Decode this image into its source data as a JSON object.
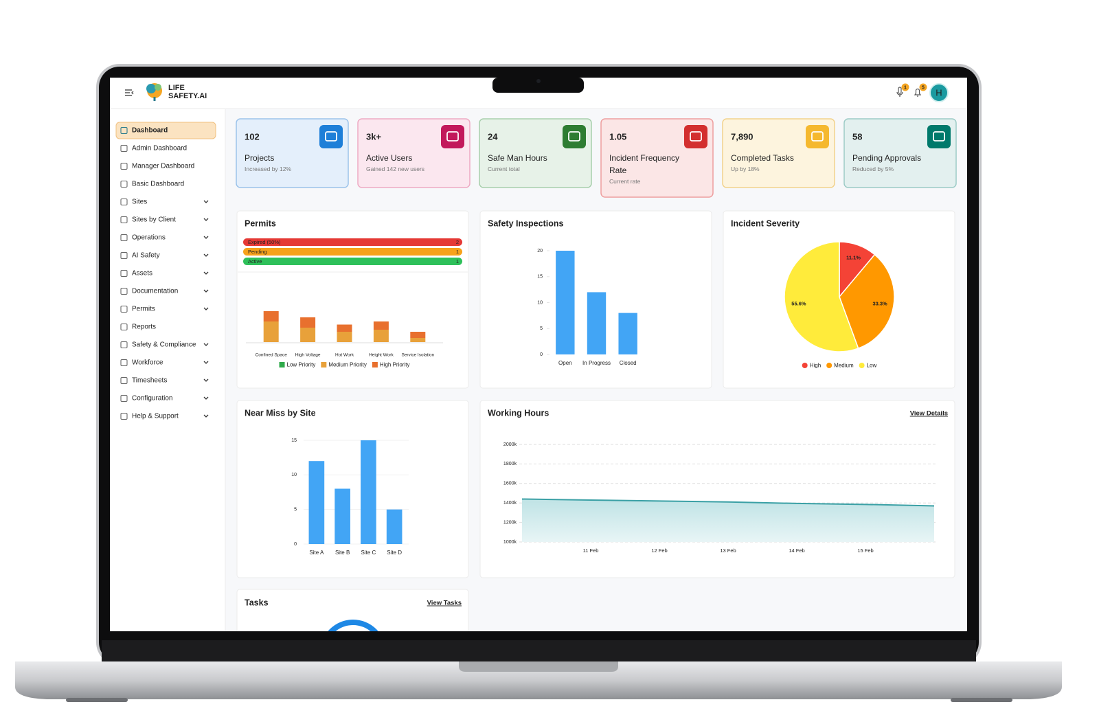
{
  "header": {
    "logo_top": "LIFE",
    "logo_bottom": "SAFETY.AI",
    "mic_badge": "1",
    "bell_badge": "5",
    "avatar": "H"
  },
  "sidebar": {
    "active": 0,
    "items": [
      {
        "label": "Dashboard",
        "expandable": false
      },
      {
        "label": "Admin Dashboard",
        "expandable": false
      },
      {
        "label": "Manager Dashboard",
        "expandable": false
      },
      {
        "label": "Basic Dashboard",
        "expandable": false
      },
      {
        "label": "Sites",
        "expandable": true
      },
      {
        "label": "Sites by Client",
        "expandable": true
      },
      {
        "label": "Operations",
        "expandable": true
      },
      {
        "label": "AI Safety",
        "expandable": true
      },
      {
        "label": "Assets",
        "expandable": true
      },
      {
        "label": "Documentation",
        "expandable": true
      },
      {
        "label": "Permits",
        "expandable": true
      },
      {
        "label": "Reports",
        "expandable": false
      },
      {
        "label": "Safety & Compliance",
        "expandable": true
      },
      {
        "label": "Workforce",
        "expandable": true
      },
      {
        "label": "Timesheets",
        "expandable": true
      },
      {
        "label": "Configuration",
        "expandable": true
      },
      {
        "label": "Help & Support",
        "expandable": true
      }
    ]
  },
  "stats": [
    {
      "value": "102",
      "label": "Projects",
      "sub": "Increased by 12%",
      "color": "#1e7fd8",
      "bg": "#e4effb",
      "border": "#9cc3ea"
    },
    {
      "value": "3k+",
      "label": "Active Users",
      "sub": "Gained 142 new users",
      "color": "#c2185b",
      "bg": "#fbe7ef",
      "border": "#eeaac3"
    },
    {
      "value": "24",
      "label": "Safe Man Hours",
      "sub": "Current total",
      "color": "#2e7d32",
      "bg": "#e7f2e8",
      "border": "#a8cfac"
    },
    {
      "value": "1.05",
      "label": "Incident Frequency Rate",
      "sub": "Current rate",
      "color": "#d32f2f",
      "bg": "#fbe6e6",
      "border": "#ee9e9e"
    },
    {
      "value": "7,890",
      "label": "Completed Tasks",
      "sub": "Up by 18%",
      "color": "#f5b82e",
      "bg": "#fdf4de",
      "border": "#f2d28c"
    },
    {
      "value": "58",
      "label": "Pending Approvals",
      "sub": "Reduced by 5%",
      "color": "#00796b",
      "bg": "#e3f0ef",
      "border": "#9ccbc6"
    }
  ],
  "permits_status": [
    {
      "label": "Expired (50%)",
      "count": 2,
      "color": "#e53935"
    },
    {
      "label": "Pending",
      "count": 1,
      "color": "#f7a21b"
    },
    {
      "label": "Active",
      "count": 1,
      "color": "#2ec05a"
    }
  ],
  "chart_data": [
    {
      "type": "stacked_bar",
      "title": "Permits",
      "categories": [
        "Confined Space",
        "High Voltage",
        "Hot Work",
        "Height Work",
        "Service Isolation"
      ],
      "series": [
        {
          "name": "Low Priority",
          "color": "#2eaa4a",
          "values": [
            0,
            0,
            0,
            0,
            0
          ]
        },
        {
          "name": "Medium Priority",
          "color": "#e8a13a",
          "values": [
            2,
            1.4,
            1,
            1.2,
            0.4
          ]
        },
        {
          "name": "High Priority",
          "color": "#e8702e",
          "values": [
            1,
            1,
            0.7,
            0.8,
            0.6
          ]
        }
      ]
    },
    {
      "type": "bar",
      "title": "Safety Inspections",
      "categories": [
        "Open",
        "In Progress",
        "Closed"
      ],
      "values": [
        20,
        12,
        8
      ],
      "color": "#42a5f5",
      "ylim": [
        0,
        20
      ],
      "yticks": [
        0,
        5,
        10,
        15,
        20
      ],
      "grid": false
    },
    {
      "type": "pie",
      "title": "Incident Severity",
      "categories": [
        "High",
        "Medium",
        "Low"
      ],
      "values": [
        11.1,
        33.3,
        55.6
      ],
      "value_labels": [
        "11.1%",
        "33.3%",
        "55.6%"
      ],
      "colors": [
        "#f44336",
        "#ff9800",
        "#ffeb3b"
      ]
    },
    {
      "type": "bar",
      "title": "Near Miss by Site",
      "categories": [
        "Site A",
        "Site B",
        "Site C",
        "Site D"
      ],
      "values": [
        12,
        8,
        15,
        5
      ],
      "color": "#42a5f5",
      "ylim": [
        0,
        15
      ],
      "yticks": [
        0,
        5,
        10,
        15
      ],
      "grid": true
    },
    {
      "type": "line",
      "title": "Working Hours",
      "link": "View Details",
      "categories": [
        null,
        "11 Feb",
        "12 Feb",
        "13 Feb",
        "14 Feb",
        "15 Feb",
        null
      ],
      "values": [
        1440000,
        1430000,
        1420000,
        1410000,
        1395000,
        1385000,
        1370000
      ],
      "color": "#3aa0a5",
      "area": true,
      "grid": true,
      "ylim": [
        1000000,
        2000000
      ],
      "yticks": [
        {
          "value": 1000000,
          "label": "1000k"
        },
        {
          "value": 1200000,
          "label": "1200k"
        },
        {
          "value": 1400000,
          "label": "1400k"
        },
        {
          "value": 1600000,
          "label": "1600k"
        },
        {
          "value": 1800000,
          "label": "1800k"
        },
        {
          "value": 2000000,
          "label": "2000k"
        }
      ]
    }
  ],
  "tasks": {
    "title": "Tasks",
    "link": "View Tasks"
  }
}
